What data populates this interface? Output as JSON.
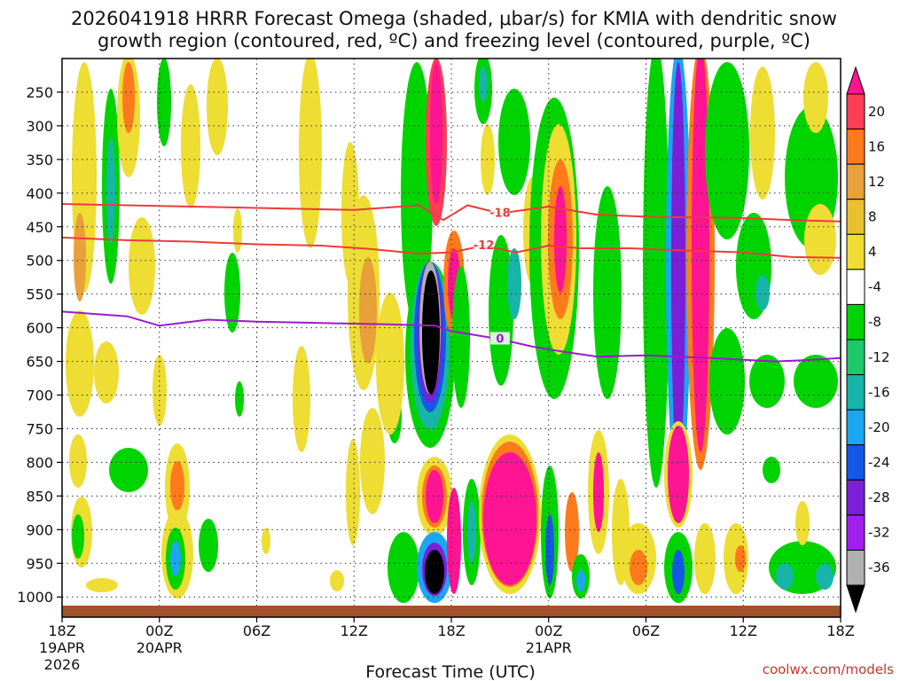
{
  "chart_data": {
    "type": "heatmap",
    "title_line1": "2026041918 HRRR Forecast Omega (shaded, μbar/s) for KMIA with dendritic snow",
    "title_line2": "growth region (contoured, red, ºC) and freezing level (contoured, purple, ºC)",
    "xlabel": "Forecast Time (UTC)",
    "credit": "coolwx.com/models",
    "y_axis": {
      "unit": "hPa",
      "range": [
        200,
        1030
      ],
      "ticks": [
        250,
        300,
        350,
        400,
        450,
        500,
        550,
        600,
        650,
        700,
        750,
        800,
        850,
        900,
        950,
        1000
      ]
    },
    "x_axis": {
      "unit": "forecast hour",
      "range": [
        0,
        48
      ],
      "ticks": [
        {
          "hour": 0,
          "label": "18Z",
          "sub1": "19APR",
          "sub2": "2026"
        },
        {
          "hour": 6,
          "label": "00Z",
          "sub1": "20APR",
          "sub2": ""
        },
        {
          "hour": 12,
          "label": "06Z",
          "sub1": "",
          "sub2": ""
        },
        {
          "hour": 18,
          "label": "12Z",
          "sub1": "",
          "sub2": ""
        },
        {
          "hour": 24,
          "label": "18Z",
          "sub1": "",
          "sub2": ""
        },
        {
          "hour": 30,
          "label": "00Z",
          "sub1": "21APR",
          "sub2": ""
        },
        {
          "hour": 36,
          "label": "06Z",
          "sub1": "",
          "sub2": ""
        },
        {
          "hour": 42,
          "label": "12Z",
          "sub1": "",
          "sub2": ""
        },
        {
          "hour": 48,
          "label": "18Z",
          "sub1": "",
          "sub2": ""
        }
      ]
    },
    "colorbar": {
      "labels": [
        "20",
        "16",
        "12",
        "8",
        "4",
        "-4",
        "-8",
        "-12",
        "-16",
        "-20",
        "-24",
        "-28",
        "-32",
        "-36"
      ],
      "colors": [
        "#ff1493",
        "#ff3d55",
        "#ff7a1c",
        "#e8a03a",
        "#e8c030",
        "#eedd33",
        "#ffffff",
        "#00d400",
        "#1cc868",
        "#16b5a8",
        "#1aa7f0",
        "#1558e8",
        "#7b1fd8",
        "#a020f0",
        "#b0b0b0",
        "#000000"
      ]
    },
    "contours": [
      {
        "kind": "dendritic",
        "color": "#ee3b3b",
        "level_label": "-18",
        "points": [
          [
            0,
            416
          ],
          [
            4,
            418
          ],
          [
            8,
            420
          ],
          [
            12,
            422
          ],
          [
            18,
            425
          ],
          [
            22,
            418
          ],
          [
            23.5,
            440
          ],
          [
            25,
            418
          ],
          [
            27,
            430
          ],
          [
            30,
            420
          ],
          [
            33,
            432
          ],
          [
            36,
            435
          ],
          [
            39,
            436
          ],
          [
            42,
            437
          ],
          [
            45,
            440
          ],
          [
            48,
            442
          ]
        ]
      },
      {
        "kind": "dendritic",
        "color": "#ee3b3b",
        "level_label": "-12",
        "points": [
          [
            0,
            466
          ],
          [
            4,
            470
          ],
          [
            8,
            472
          ],
          [
            12,
            476
          ],
          [
            16,
            478
          ],
          [
            19,
            483
          ],
          [
            22,
            490
          ],
          [
            24,
            488
          ],
          [
            26,
            478
          ],
          [
            28,
            488
          ],
          [
            30,
            478
          ],
          [
            32,
            482
          ],
          [
            35,
            482
          ],
          [
            38,
            485
          ],
          [
            42,
            488
          ],
          [
            45,
            495
          ],
          [
            48,
            496
          ]
        ]
      },
      {
        "kind": "freezing",
        "color": "#9a1ccc",
        "level_label": "0",
        "points": [
          [
            0,
            576
          ],
          [
            4,
            583
          ],
          [
            6,
            597
          ],
          [
            9,
            588
          ],
          [
            12,
            591
          ],
          [
            16,
            593
          ],
          [
            20,
            595
          ],
          [
            23,
            597
          ],
          [
            24,
            605
          ],
          [
            27,
            617
          ],
          [
            29,
            628
          ],
          [
            31,
            636
          ],
          [
            33,
            643
          ],
          [
            36,
            641
          ],
          [
            40,
            645
          ],
          [
            44,
            650
          ],
          [
            46,
            648
          ],
          [
            48,
            645
          ]
        ]
      }
    ]
  }
}
